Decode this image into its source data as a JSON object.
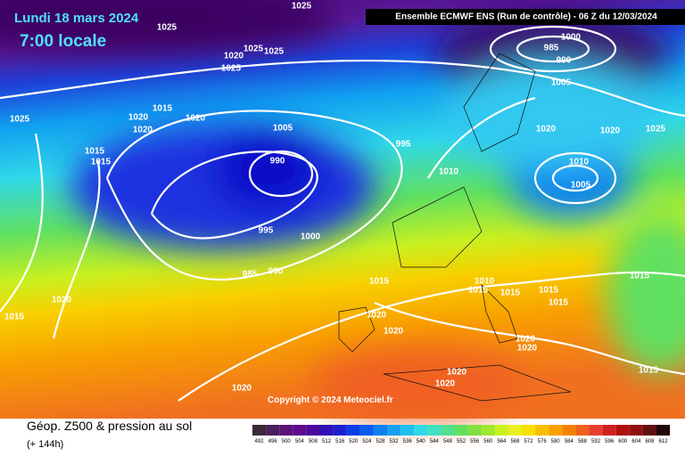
{
  "header": {
    "date": "Lundi 18 mars 2024",
    "time": "7:00 locale",
    "model": "Ensemble ECMWF ENS  (Run de contrôle)  -  06 Z du 12/03/2024"
  },
  "copyright": "Copyright © 2024 Meteociel.fr",
  "legend": {
    "title": "Géop. Z500 & pression au sol",
    "lead": "(+ 144h)",
    "scale": [
      492,
      496,
      500,
      504,
      508,
      512,
      516,
      520,
      524,
      528,
      532,
      536,
      540,
      544,
      548,
      552,
      556,
      560,
      564,
      568,
      572,
      576,
      580,
      584,
      588,
      592,
      596,
      600,
      604,
      608,
      612
    ],
    "colors": [
      "#3a2a3a",
      "#4b1f5e",
      "#5a1478",
      "#5e0c8c",
      "#4a0aa0",
      "#3010b4",
      "#1e20d0",
      "#0a3ce8",
      "#0a5cf0",
      "#1080f0",
      "#18a0f0",
      "#20c0f0",
      "#30d8e8",
      "#40e0c0",
      "#50e090",
      "#60e060",
      "#80e040",
      "#a0e830",
      "#c8f020",
      "#e8f020",
      "#f8e000",
      "#f8c000",
      "#f8a000",
      "#f88000",
      "#f06020",
      "#e84030",
      "#d02020",
      "#b01010",
      "#901010",
      "#601010",
      "#200808"
    ]
  },
  "isobars": [
    1025,
    1025,
    1025,
    1025,
    1025,
    1020,
    1025,
    1020,
    1015,
    1020,
    1020,
    1015,
    1015,
    1005,
    995,
    990,
    1010,
    995,
    1000,
    985,
    990,
    1015,
    1020,
    1015,
    1020,
    1020,
    1015,
    1010,
    1015,
    1015,
    1015,
    1020,
    1020,
    1020,
    1020,
    1020,
    1015,
    1015,
    1000,
    985,
    990,
    1005,
    1020,
    1020,
    1025,
    1010,
    1005
  ]
}
